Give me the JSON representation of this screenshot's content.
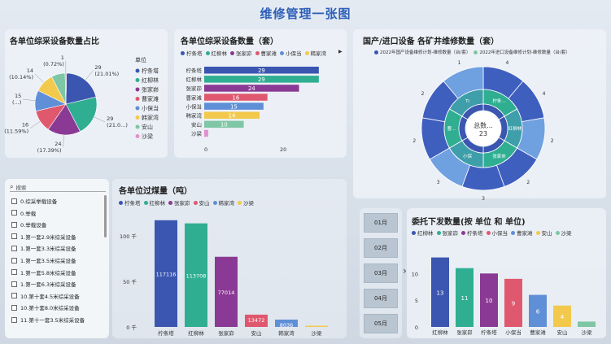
{
  "page_title": "维修管理一张图",
  "pie": {
    "title": "各单位综采设备数量占比",
    "legend_title": "单位",
    "slices": [
      {
        "name": "柠条塔",
        "value": 29,
        "label": "29 (21.01%)",
        "color": "#3a56b0"
      },
      {
        "name": "红柳林",
        "value": 29,
        "label": "29 (21.0...)",
        "color": "#2fae92"
      },
      {
        "name": "张家峁",
        "value": 24,
        "label": "24 (17.39%)",
        "color": "#8a3a94"
      },
      {
        "name": "曹家滩",
        "value": 16,
        "label": "16 (11.59%)",
        "color": "#e0586e"
      },
      {
        "name": "小保当",
        "value": 15,
        "label": "15 (...)",
        "color": "#5f8fd6"
      },
      {
        "name": "韩家湾",
        "value": 14,
        "label": "14 (10.14%)",
        "color": "#f2c94c"
      },
      {
        "name": "安山",
        "value": 10,
        "label": "",
        "color": "#7fc6a4"
      },
      {
        "name": "沙梁",
        "value": 1,
        "label": "1 (0.72%)",
        "color": "#e48fd0"
      }
    ]
  },
  "hbar": {
    "title": "各单位综采设备数量（套）",
    "legend": [
      "柠条塔",
      "红柳林",
      "张家峁",
      "曹家滩",
      "小保当",
      "韩家湾"
    ],
    "more_icon": "▶",
    "axis": [
      "0",
      "20"
    ],
    "max": 35,
    "bars": [
      {
        "name": "柠条塔",
        "value": 29,
        "label": "29",
        "color": "#3a56b0"
      },
      {
        "name": "红柳林",
        "value": 29,
        "label": "29",
        "color": "#2fae92"
      },
      {
        "name": "张家峁",
        "value": 24,
        "label": "24",
        "color": "#8a3a94"
      },
      {
        "name": "曹家滩",
        "value": 16,
        "label": "16",
        "color": "#e0586e"
      },
      {
        "name": "小保当",
        "value": 15,
        "label": "15",
        "color": "#5f8fd6"
      },
      {
        "name": "韩家湾",
        "value": 14,
        "label": "14",
        "color": "#f2c94c"
      },
      {
        "name": "安山",
        "value": 10,
        "label": "10",
        "color": "#7fc6a4"
      },
      {
        "name": "沙梁",
        "value": 1,
        "label": "",
        "color": "#e48fd0"
      }
    ]
  },
  "sunburst": {
    "title": "国产/进口设备 各矿井维修数量（套）",
    "legend": [
      "2022年国产设备维修计划-维修数量（台/套）",
      "2022年进口设备维修计划-维修数量（台/套）"
    ],
    "legend_colors": [
      "#3a56b0",
      "#7fc6a4"
    ],
    "center_label": "总数...",
    "center_value": "23",
    "inner_labels": [
      "柠条...",
      "红柳林",
      "张家峁",
      "小保",
      "曹...",
      "Ti"
    ],
    "outer_numbers": [
      "4",
      "4",
      "2",
      "2",
      "3",
      "3",
      "2",
      "2",
      "1"
    ]
  },
  "filter": {
    "search_placeholder": "搜索",
    "items": [
      "0.综采举载设备",
      "0.举载",
      "0.举载设备",
      "1.第一套2.9米综采设备",
      "1.第一套3.3米综采设备",
      "1.第一套3.5米综采设备",
      "1.第一套5.8米综采设备",
      "1.第一套6.3米综采设备",
      "10.第十套4.5米综采设备",
      "10.第十套8.0米综采设备",
      "11.第十一套3.5米综采设备"
    ]
  },
  "vbar": {
    "title": "各单位过煤量（吨）",
    "legend": [
      "柠条塔",
      "红柳林",
      "张家峁",
      "安山",
      "韩家湾",
      "沙梁"
    ],
    "y_ticks": [
      "100 千",
      "50 千",
      "0 千"
    ],
    "max": 125000,
    "bars": [
      {
        "name": "柠条塔",
        "value": 117116,
        "label": "117116",
        "color": "#3a56b0"
      },
      {
        "name": "红柳林",
        "value": 113708,
        "label": "113708",
        "color": "#2fae92"
      },
      {
        "name": "张家峁",
        "value": 77014,
        "label": "77014",
        "color": "#8a3a94"
      },
      {
        "name": "安山",
        "value": 13472,
        "label": "13472",
        "color": "#e0586e"
      },
      {
        "name": "韩家湾",
        "value": 8036,
        "label": "8036",
        "color": "#5f8fd6"
      },
      {
        "name": "沙梁",
        "value": 1000,
        "label": "",
        "color": "#f2c94c"
      }
    ]
  },
  "months": [
    "01月",
    "02月",
    "03月",
    "04月",
    "05月"
  ],
  "next_icon": "›",
  "dispatch": {
    "title": "委托下发数量(按 单位 和 单位)",
    "legend": [
      "红柳林",
      "张家峁",
      "柠条塔",
      "小保当",
      "曹家滩",
      "安山",
      "沙梁"
    ],
    "y_ticks": [
      "10",
      "5",
      "0"
    ],
    "max": 14,
    "bars": [
      {
        "name": "红柳林",
        "value": 13,
        "label": "13",
        "color": "#3a56b0"
      },
      {
        "name": "张家峁",
        "value": 11,
        "label": "11",
        "color": "#2fae92"
      },
      {
        "name": "柠条塔",
        "value": 10,
        "label": "10",
        "color": "#8a3a94"
      },
      {
        "name": "小保当",
        "value": 9,
        "label": "9",
        "color": "#e0586e"
      },
      {
        "name": "曹家滩",
        "value": 6,
        "label": "6",
        "color": "#5f8fd6"
      },
      {
        "name": "安山",
        "value": 4,
        "label": "4",
        "color": "#f2c94c"
      },
      {
        "name": "沙梁",
        "value": 1,
        "label": "",
        "color": "#7fc6a4"
      }
    ]
  },
  "chart_data": [
    {
      "type": "pie",
      "title": "各单位综采设备数量占比",
      "categories": [
        "柠条塔",
        "红柳林",
        "张家峁",
        "曹家滩",
        "小保当",
        "韩家湾",
        "安山",
        "沙梁"
      ],
      "values": [
        29,
        29,
        24,
        16,
        15,
        14,
        10,
        1
      ]
    },
    {
      "type": "bar",
      "title": "各单位综采设备数量（套）",
      "categories": [
        "柠条塔",
        "红柳林",
        "张家峁",
        "曹家滩",
        "小保当",
        "韩家湾",
        "安山",
        "沙梁"
      ],
      "values": [
        29,
        29,
        24,
        16,
        15,
        14,
        10,
        1
      ]
    },
    {
      "type": "bar",
      "title": "各单位过煤量（吨）",
      "categories": [
        "柠条塔",
        "红柳林",
        "张家峁",
        "安山",
        "韩家湾",
        "沙梁"
      ],
      "values": [
        117116,
        113708,
        77014,
        13472,
        8036,
        1000
      ]
    },
    {
      "type": "bar",
      "title": "委托下发数量(按 单位 和 单位)",
      "categories": [
        "红柳林",
        "张家峁",
        "柠条塔",
        "小保当",
        "曹家滩",
        "安山",
        "沙梁"
      ],
      "values": [
        13,
        11,
        10,
        9,
        6,
        4,
        1
      ]
    }
  ]
}
